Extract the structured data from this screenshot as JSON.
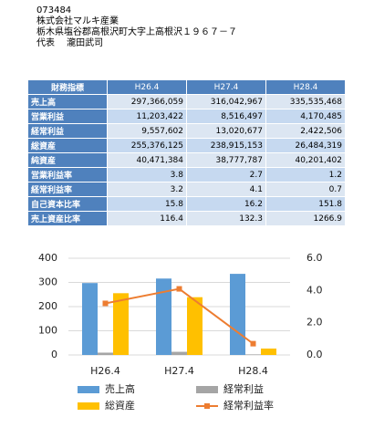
{
  "header": {
    "code": "073484",
    "company": "株式会社マルキ産業",
    "address": "栃木県塩谷郡高根沢町大字上高根沢１９６７－７",
    "representative": "代表　 瀧田武司"
  },
  "table": {
    "rows": [
      [
        "財務指標",
        "H26.4",
        "H27.4",
        "H28.4"
      ],
      [
        "売上高",
        "297,366,059",
        "316,042,967",
        "335,535,468"
      ],
      [
        "営業利益",
        "11,203,422",
        "8,516,497",
        "4,170,485"
      ],
      [
        "経常利益",
        "9,557,602",
        "13,020,677",
        "2,422,506"
      ],
      [
        "総資産",
        "255,376,125",
        "238,915,153",
        "26,484,319"
      ],
      [
        "純資産",
        "40,471,384",
        "38,777,787",
        "40,201,402"
      ],
      [
        "営業利益率",
        "3.8",
        "2.7",
        "1.2"
      ],
      [
        "経常利益率",
        "3.2",
        "4.1",
        "0.7"
      ],
      [
        "自己資本比率",
        "15.8",
        "16.2",
        "151.8"
      ],
      [
        "売上資産比率",
        "116.4",
        "132.3",
        "1266.9"
      ]
    ]
  },
  "chart_data": {
    "type": "bar",
    "categories": [
      "H26.4",
      "H27.4",
      "H28.4"
    ],
    "series": [
      {
        "name": "売上高",
        "color": "#5b9bd5",
        "values": [
          297.4,
          316.0,
          335.5
        ]
      },
      {
        "name": "経常利益",
        "color": "#a5a5a5",
        "values": [
          9.6,
          13.0,
          2.4
        ]
      },
      {
        "name": "総資産",
        "color": "#ffc000",
        "values": [
          255.4,
          238.9,
          26.5
        ]
      },
      {
        "name": "経常利益率",
        "color": "#ed7d31",
        "type": "line",
        "axis": "y2",
        "values": [
          3.2,
          4.1,
          0.7
        ]
      }
    ],
    "ylim": [
      0,
      400
    ],
    "yticks": [
      0,
      100,
      200,
      300,
      400
    ],
    "y2lim": [
      0,
      6
    ],
    "y2ticks": [
      {
        "value": 0,
        "label": "0.0"
      },
      {
        "value": 2,
        "label": "2.0"
      },
      {
        "value": 4,
        "label": "4.0"
      },
      {
        "value": 6,
        "label": "6.0"
      }
    ],
    "grid": true
  }
}
